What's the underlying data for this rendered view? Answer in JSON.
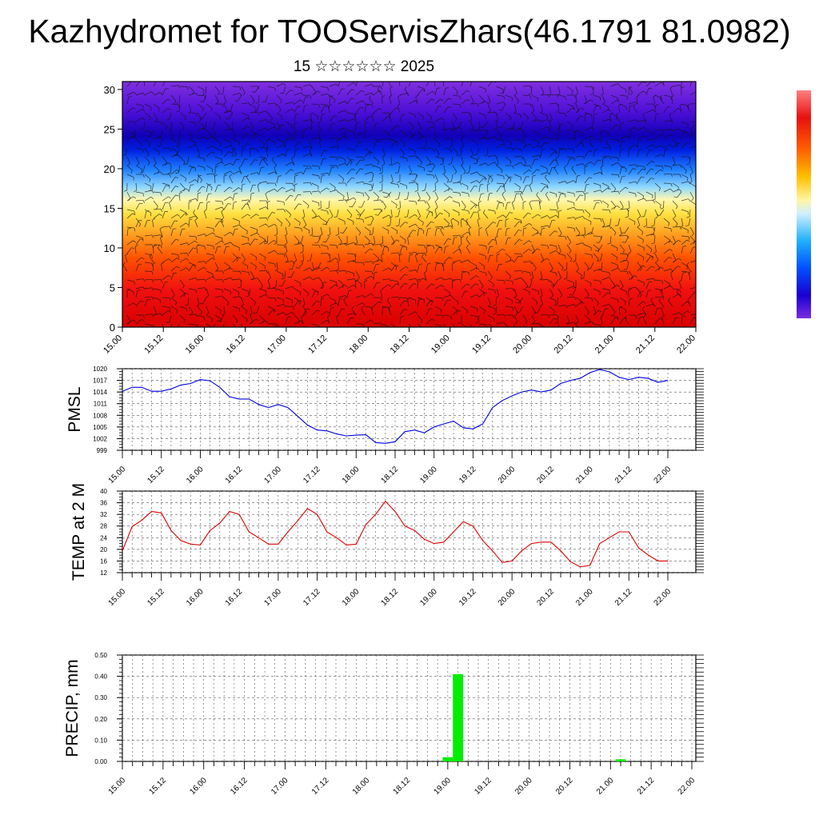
{
  "title": "Kazhydromet for TOOServisZhars(46.1791 81.0982)",
  "subtitle": "15 ☆☆☆☆☆☆ 2025",
  "time_ticks": [
    "15.00",
    "15.12",
    "16.00",
    "16.12",
    "17.00",
    "17.12",
    "18.00",
    "18.12",
    "19.00",
    "19.12",
    "20.00",
    "20.12",
    "21.00",
    "21.12",
    "22.00"
  ],
  "colors": {
    "pmsl_line": "#0000dd",
    "temp_line": "#dd0000",
    "precip_bar": "#00ee00"
  },
  "chart_data": [
    {
      "type": "heatmap",
      "name": "temperature-wind-profile",
      "x_ticks": [
        "15.00",
        "15.12",
        "16.00",
        "16.12",
        "17.00",
        "17.12",
        "18.00",
        "18.12",
        "19.00",
        "19.12",
        "20.00",
        "20.12",
        "21.00",
        "21.12",
        "22.00"
      ],
      "yticks": [
        0,
        5,
        10,
        15,
        20,
        25,
        30
      ],
      "ylim": [
        0,
        31
      ],
      "colorscale": "red (bottom) → orange → yellow → light blue → blue → violet (top)",
      "wind_barbs": true,
      "colorbar_position": "right"
    },
    {
      "type": "line",
      "ylabel": "PMSL",
      "ylim": [
        999,
        1020
      ],
      "yticks": [
        999,
        1002,
        1005,
        1008,
        1011,
        1014,
        1017,
        1020
      ],
      "x_ticks": [
        "15.00",
        "15.12",
        "16.00",
        "16.12",
        "17.00",
        "17.12",
        "18.00",
        "18.12",
        "19.00",
        "19.12",
        "20.00",
        "20.12",
        "21.00",
        "21.12",
        "22.00"
      ],
      "grid": true,
      "series": [
        {
          "values": [
            1014.2,
            1015.2,
            1015.2,
            1014.2,
            1014.2,
            1014.8,
            1015.8,
            1016.2,
            1017.2,
            1016.9,
            1015.2,
            1012.8,
            1012.2,
            1012.2,
            1010.8,
            1010.0,
            1010.8,
            1010.0,
            1007.8,
            1005.5,
            1004.2,
            1004.0,
            1003.2,
            1002.7,
            1002.9,
            1003.0,
            1001.0,
            1000.8,
            1001.2,
            1003.8,
            1004.2,
            1003.5,
            1005.0,
            1005.8,
            1006.5,
            1004.8,
            1004.5,
            1005.8,
            1010.0,
            1011.8,
            1013.0,
            1014.0,
            1014.5,
            1014.0,
            1014.5,
            1016.2,
            1017.0,
            1017.5,
            1019.0,
            1019.8,
            1019.2,
            1017.8,
            1017.2,
            1017.8,
            1017.5,
            1016.5,
            1017.0
          ]
        }
      ]
    },
    {
      "type": "line",
      "ylabel": "TEMP at 2 M",
      "ylim": [
        12,
        40
      ],
      "yticks": [
        12,
        16,
        20,
        24,
        28,
        32,
        36,
        40
      ],
      "x_ticks": [
        "15.00",
        "15.12",
        "16.00",
        "16.12",
        "17.00",
        "17.12",
        "18.00",
        "18.12",
        "19.00",
        "19.12",
        "20.00",
        "20.12",
        "21.00",
        "21.12",
        "22.00"
      ],
      "grid": true,
      "series": [
        {
          "values": [
            19.5,
            27.8,
            30.0,
            33.0,
            32.5,
            26.5,
            23.0,
            21.8,
            21.5,
            26.5,
            29.0,
            33.0,
            32.0,
            26.0,
            24.0,
            21.8,
            21.8,
            26.0,
            29.8,
            34.0,
            32.0,
            26.0,
            24.0,
            21.5,
            21.8,
            28.5,
            32.0,
            36.5,
            33.0,
            28.0,
            26.5,
            23.5,
            22.0,
            22.5,
            26.0,
            29.5,
            28.0,
            23.0,
            19.5,
            15.5,
            16.0,
            19.5,
            22.0,
            22.5,
            22.5,
            19.5,
            15.8,
            14.0,
            14.5,
            22.0,
            24.0,
            26.0,
            26.0,
            20.5,
            18.0,
            16.0,
            16.0
          ]
        }
      ]
    },
    {
      "type": "bar",
      "ylabel": "PRECIP, mm",
      "ylim": [
        0,
        0.5
      ],
      "yticks": [
        "0.00",
        "0.10",
        "0.20",
        "0.30",
        "0.40",
        "0.50"
      ],
      "x_ticks": [
        "15.00",
        "15.12",
        "16.00",
        "16.12",
        "17.00",
        "17.12",
        "18.00",
        "18.12",
        "19.00",
        "19.12",
        "20.00",
        "20.12",
        "21.00",
        "21.12",
        "22.00"
      ],
      "grid": true,
      "series": [
        {
          "values": [
            0,
            0,
            0,
            0,
            0,
            0,
            0,
            0,
            0,
            0,
            0,
            0,
            0,
            0,
            0,
            0,
            0,
            0,
            0,
            0,
            0,
            0,
            0,
            0,
            0,
            0,
            0,
            0,
            0,
            0,
            0,
            0,
            0.02,
            0.41,
            0,
            0,
            0,
            0,
            0,
            0,
            0,
            0,
            0,
            0,
            0,
            0,
            0,
            0,
            0,
            0.01,
            0,
            0,
            0,
            0,
            0,
            0,
            0
          ]
        }
      ]
    }
  ]
}
